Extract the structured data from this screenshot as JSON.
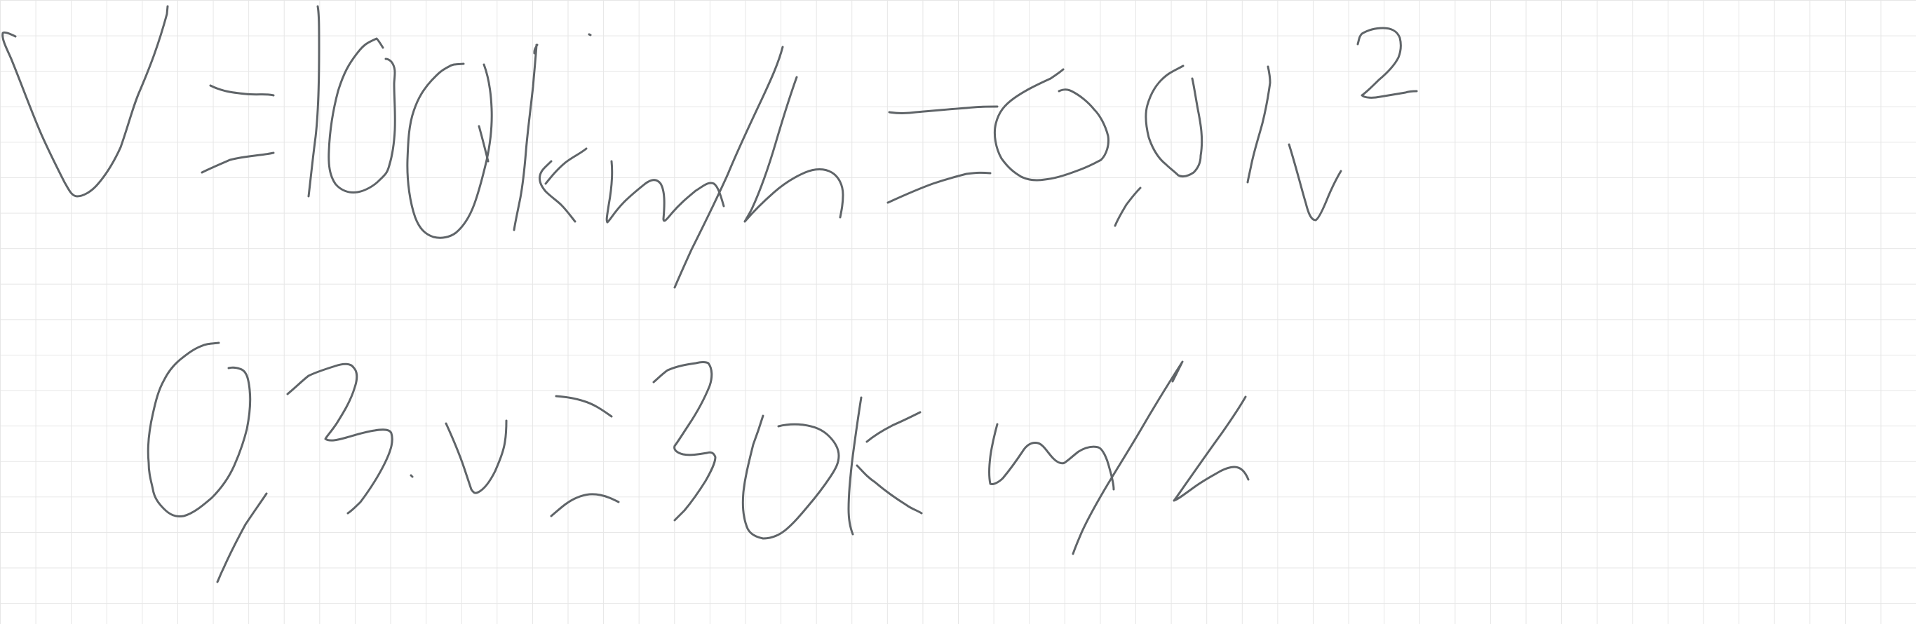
{
  "handwriting": {
    "line1": "V = 100 km/h = 0,1v²",
    "line2": "0,3 v = 30 km/h"
  }
}
